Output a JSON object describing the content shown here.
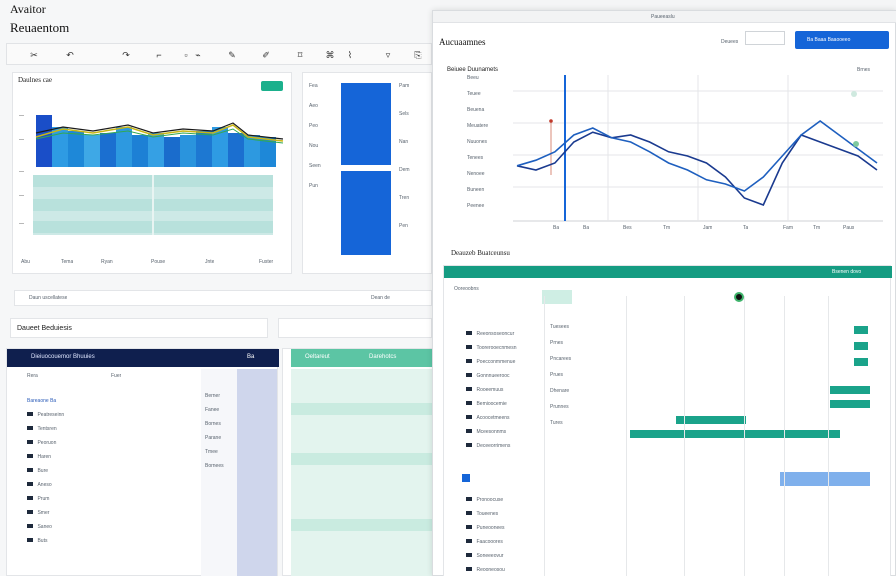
{
  "left_window": {
    "app_name": "Avaitor",
    "subtitle": "Reuaentom",
    "toolbar_items": [
      "cut-icon",
      "undo-icon",
      "redo-icon",
      "brush-icon",
      "paste-icon",
      "link-icon",
      "pen-icon",
      "text-icon",
      "clip-icon",
      "attach-icon",
      "edit-icon",
      "filter-icon",
      "copy-icon"
    ],
    "chart_card": {
      "title": "Daulnes cae",
      "action_label": "",
      "x_ticks": [
        "Abu",
        "Tema",
        "Ryan",
        "Pouse",
        "Jnte",
        "Fuster"
      ]
    },
    "list_panel": {
      "rows_left": [
        "Fea",
        "Aeo",
        "Peo",
        "Nou",
        "Seen",
        "Pun"
      ],
      "rows_right": [
        "Pam",
        "Sels",
        "Nan",
        "Dem",
        "Tren",
        "Pen"
      ]
    },
    "footer_left": "Daun uscellatese",
    "footer_right": "Dean de",
    "section_title": "Daueet Beduiesis",
    "table": {
      "header_left": "Dieiuocouemor Bhuuies",
      "header_right": "Ba",
      "col_left": "Rera",
      "col_mid": "Fuer",
      "row_labels": [
        "Bareaone Ba",
        "Peatreseinn",
        "Tentsren",
        "Peoruon",
        "Haren",
        "Bure",
        "Aneso",
        "Prum",
        "Smer",
        "Saneo",
        "Buts"
      ],
      "right_cells": [
        "Berner",
        "Fanee",
        "Bornes",
        "Parane",
        "Tmee",
        "Bornees"
      ]
    },
    "green_table": {
      "header": "Oeltareut",
      "header2": "Darehotcs"
    }
  },
  "right_window": {
    "title": "Aucuaamnes",
    "top_tabs": "Paueeaslu",
    "select_label": "Deuees",
    "button_label": "Ba Baaa Baaooeeo",
    "subheader": "Beiuee Duunamets",
    "subheader_right": "Brnes",
    "legend_labels": [
      "Beeu",
      "Teuee",
      "Beuena",
      "Meuatere",
      "Nuuones",
      "Tenees",
      "Nenoee",
      "Buneen",
      "Peenee"
    ],
    "x_ticks": [
      "Ba",
      "Ba",
      "Bes",
      "Tm",
      "Jam",
      "Ta",
      "Fam",
      "Tm",
      "Paus"
    ],
    "chart_data": {
      "type": "line",
      "series": [
        {
          "values": [
            0.38,
            0.35,
            0.4,
            0.55,
            0.62,
            0.58,
            0.6,
            0.55,
            0.48,
            0.45,
            0.4,
            0.3,
            0.15,
            0.1,
            0.4,
            0.6,
            0.55,
            0.5,
            0.45,
            0.35
          ]
        },
        {
          "values": [
            0.38,
            0.42,
            0.48,
            0.6,
            0.65,
            0.58,
            0.55,
            0.48,
            0.4,
            0.35,
            0.28,
            0.25,
            0.2,
            0.3,
            0.45,
            0.6,
            0.7,
            0.6,
            0.5,
            0.4
          ]
        }
      ]
    },
    "report": {
      "title": "Deauzeb Buatceunsu",
      "header_right": "Bsenen dovo",
      "top_label": "Ooreoobns",
      "row_labels": [
        "Reeonsoseoncur",
        "Toorerooecnmesn",
        "Poecconmmenue",
        "Gonnnueerooc",
        "Rooeemuus",
        "Bemioocemie",
        "Acoocetmeens",
        "Mceesonnms",
        "Deceeorrimens"
      ],
      "col_labels": [
        "Tuesees",
        "Prnes",
        "Pncarees",
        "Prues",
        "Dhenare",
        "Prunnes",
        "Tures"
      ],
      "bottom_rows": [
        "Pronoocuse",
        "Toueenes",
        "Puneoonees",
        "Faacooores",
        "Soneeeovur",
        "Reooneosou"
      ]
    }
  }
}
